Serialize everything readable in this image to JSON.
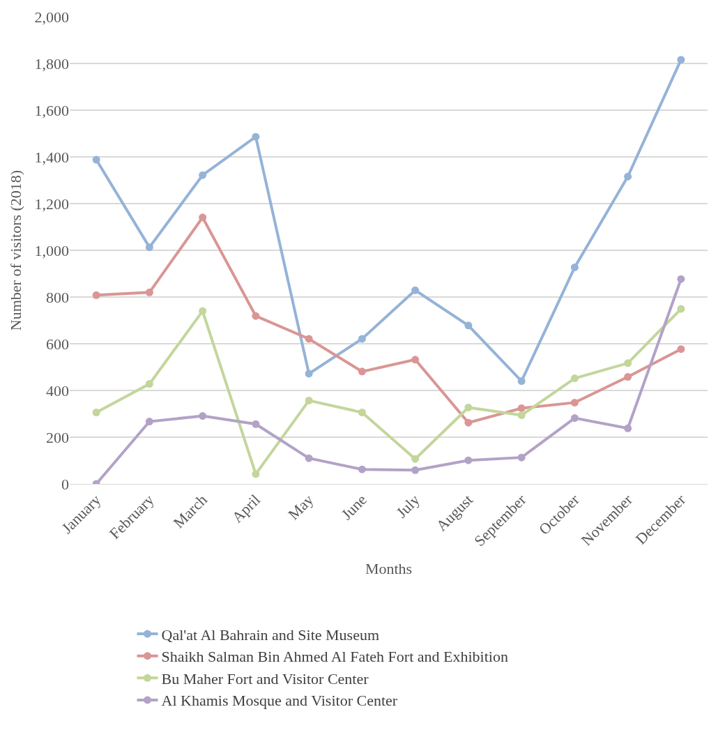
{
  "chart_data": {
    "type": "line",
    "xlabel": "Months",
    "ylabel": "Number of visitors (2018)",
    "categories": [
      "January",
      "February",
      "March",
      "April",
      "May",
      "June",
      "July",
      "August",
      "September",
      "October",
      "November",
      "December"
    ],
    "series": [
      {
        "name": "Qal'at Al Bahrain and Site Museum",
        "color": "#95b3d7",
        "values": [
          1388,
          1013,
          1322,
          1486,
          472,
          621,
          829,
          678,
          440,
          927,
          1316,
          1816
        ]
      },
      {
        "name": "Shaikh Salman Bin Ahmed Al Fateh Fort and Exhibition",
        "color": "#d99694",
        "values": [
          808,
          820,
          1141,
          719,
          621,
          481,
          532,
          262,
          324,
          348,
          458,
          577
        ]
      },
      {
        "name": "Bu Maher Fort and Visitor Center",
        "color": "#c3d69b",
        "values": [
          306,
          428,
          740,
          42,
          357,
          306,
          107,
          327,
          294,
          452,
          517,
          749
        ]
      },
      {
        "name": "Al Khamis Mosque and Visitor Center",
        "color": "#b3a2c7",
        "values": [
          0,
          267,
          291,
          256,
          110,
          62,
          59,
          101,
          113,
          282,
          238,
          877
        ]
      }
    ],
    "ylim": [
      0,
      2000
    ],
    "yticks": [
      {
        "value": 0,
        "label": "0"
      },
      {
        "value": 200,
        "label": "200"
      },
      {
        "value": 400,
        "label": "400"
      },
      {
        "value": 600,
        "label": "600"
      },
      {
        "value": 800,
        "label": "800"
      },
      {
        "value": 1000,
        "label": "1,000"
      },
      {
        "value": 1200,
        "label": "1,200"
      },
      {
        "value": 1400,
        "label": "1,400"
      },
      {
        "value": 1600,
        "label": "1,600"
      },
      {
        "value": 1800,
        "label": "1,800"
      },
      {
        "value": 2000,
        "label": "2,000"
      }
    ],
    "grid": "y",
    "legend": "bottom",
    "marker": "circle",
    "line_style": "solid"
  }
}
